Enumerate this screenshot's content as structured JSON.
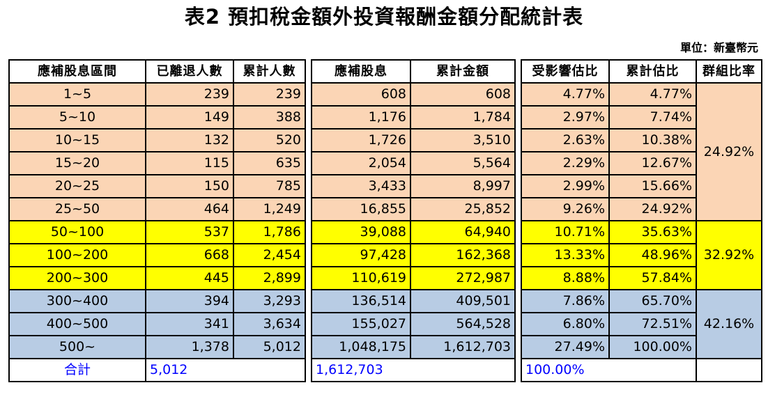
{
  "title": "表2  預扣稅金額外投資報酬金額分配統計表",
  "unit": "單位：新臺幣元",
  "headers": [
    "應補股息區間",
    "已離退人數",
    "累計人數",
    "應補股息",
    "累計金額",
    "受影響估比",
    "累計估比",
    "群組比率"
  ],
  "rows": [
    {
      "range": "1~5",
      "retired": "239",
      "cum_people": "239",
      "dividend": "608",
      "cum_amount": "608",
      "pct": "4.77%",
      "cum_pct": "4.77%"
    },
    {
      "range": "5~10",
      "retired": "149",
      "cum_people": "388",
      "dividend": "1,176",
      "cum_amount": "1,784",
      "pct": "2.97%",
      "cum_pct": "7.74%"
    },
    {
      "range": "10~15",
      "retired": "132",
      "cum_people": "520",
      "dividend": "1,726",
      "cum_amount": "3,510",
      "pct": "2.63%",
      "cum_pct": "10.38%"
    },
    {
      "range": "15~20",
      "retired": "115",
      "cum_people": "635",
      "dividend": "2,054",
      "cum_amount": "5,564",
      "pct": "2.29%",
      "cum_pct": "12.67%"
    },
    {
      "range": "20~25",
      "retired": "150",
      "cum_people": "785",
      "dividend": "3,433",
      "cum_amount": "8,997",
      "pct": "2.99%",
      "cum_pct": "15.66%"
    },
    {
      "range": "25~50",
      "retired": "464",
      "cum_people": "1,249",
      "dividend": "16,855",
      "cum_amount": "25,852",
      "pct": "9.26%",
      "cum_pct": "24.92%"
    },
    {
      "range": "50~100",
      "retired": "537",
      "cum_people": "1,786",
      "dividend": "39,088",
      "cum_amount": "64,940",
      "pct": "10.71%",
      "cum_pct": "35.63%"
    },
    {
      "range": "100~200",
      "retired": "668",
      "cum_people": "2,454",
      "dividend": "97,428",
      "cum_amount": "162,368",
      "pct": "13.33%",
      "cum_pct": "48.96%"
    },
    {
      "range": "200~300",
      "retired": "445",
      "cum_people": "2,899",
      "dividend": "110,619",
      "cum_amount": "272,987",
      "pct": "8.88%",
      "cum_pct": "57.84%"
    },
    {
      "range": "300~400",
      "retired": "394",
      "cum_people": "3,293",
      "dividend": "136,514",
      "cum_amount": "409,501",
      "pct": "7.86%",
      "cum_pct": "65.70%"
    },
    {
      "range": "400~500",
      "retired": "341",
      "cum_people": "3,634",
      "dividend": "155,027",
      "cum_amount": "564,528",
      "pct": "6.80%",
      "cum_pct": "72.51%"
    },
    {
      "range": "500~",
      "retired": "1,378",
      "cum_people": "5,012",
      "dividend": "1,048,175",
      "cum_amount": "1,612,703",
      "pct": "27.49%",
      "cum_pct": "100.00%"
    }
  ],
  "group_ratios": [
    "24.92%",
    "32.92%",
    "42.16%"
  ],
  "total": {
    "label": "合計",
    "retired": "5,012",
    "dividend": "1,612,703",
    "pct": "100.00%"
  },
  "colors": {
    "group1": "#fbd5b5",
    "group2": "#ffff00",
    "group3": "#b8cce4",
    "total_text": "#0000ff"
  }
}
